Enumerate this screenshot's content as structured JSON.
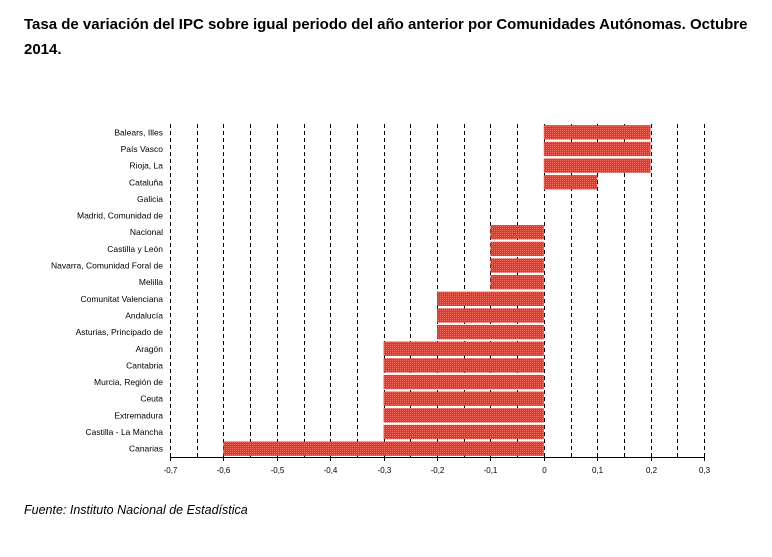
{
  "chart_data": {
    "type": "bar",
    "orientation": "horizontal",
    "title": "Tasa de variación del IPC sobre igual periodo del año anterior por Comunidades Autónomas. Octubre 2014.",
    "source": "Fuente: Instituto Nacional de Estadística",
    "xlabel": "",
    "ylabel": "",
    "xlim": [
      -0.7,
      0.3
    ],
    "xticks": [
      "-0,7",
      "-0,6",
      "-0,5",
      "-0,4",
      "-0,3",
      "-0,2",
      "-0,1",
      "0",
      "0,1",
      "0,2",
      "0,3"
    ],
    "grid": "vertical dashed",
    "bar_color": "#e0382b",
    "categories": [
      "Balears, Illes",
      "País Vasco",
      "Rioja, La",
      "Cataluña",
      "Galicia",
      "Madrid, Comunidad de",
      "Nacional",
      "Castilla y León",
      "Navarra, Comunidad Foral de",
      "Melilla",
      "Comunitat Valenciana",
      "Andalucía",
      "Asturias, Principado de",
      "Aragón",
      "Cantabria",
      "Murcia, Región de",
      "Ceuta",
      "Extremadura",
      "Castilla - La Mancha",
      "Canarias"
    ],
    "values": [
      0.2,
      0.2,
      0.2,
      0.1,
      0.0,
      0.0,
      -0.1,
      -0.1,
      -0.1,
      -0.1,
      -0.2,
      -0.2,
      -0.2,
      -0.3,
      -0.3,
      -0.3,
      -0.3,
      -0.3,
      -0.3,
      -0.6
    ]
  }
}
